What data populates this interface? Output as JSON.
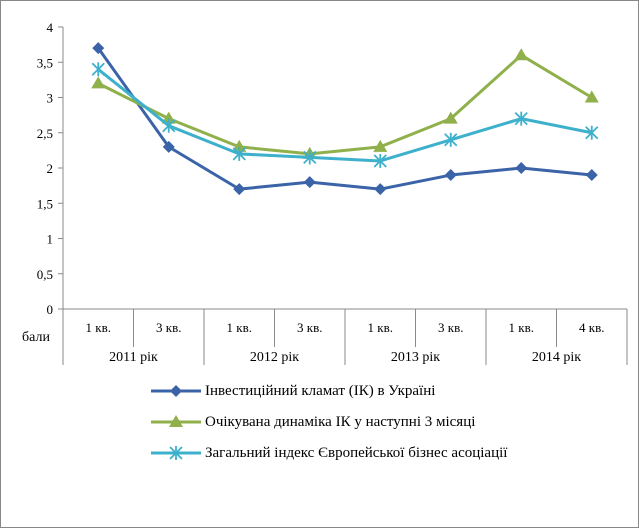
{
  "chart_data": {
    "type": "line",
    "ylabel_unit": "бали",
    "ylim": [
      0,
      4
    ],
    "yticks": [
      "0",
      "0,5",
      "1",
      "1,5",
      "2",
      "2,5",
      "3",
      "3,5",
      "4"
    ],
    "categories": [
      "1 кв.",
      "3 кв.",
      "1 кв.",
      "3 кв.",
      "1 кв.",
      "3 кв.",
      "1 кв.",
      "4 кв."
    ],
    "groups": [
      "2011 рік",
      "2012 рік",
      "2013 рік",
      "2014 рік"
    ],
    "series": [
      {
        "name": "Інвестиційний кламат (ІК) в Україні",
        "color": "#3a63a8",
        "marker": "diamond",
        "values": [
          3.7,
          2.3,
          1.7,
          1.8,
          1.7,
          1.9,
          2.0,
          1.9
        ]
      },
      {
        "name": "Очікувана динаміка ІК у наступні 3 місяці",
        "color": "#8fb04a",
        "marker": "triangle",
        "values": [
          3.2,
          2.7,
          2.3,
          2.2,
          2.3,
          2.7,
          3.6,
          3.0
        ]
      },
      {
        "name": "Загальний індекс Європейської бізнес асоціації",
        "color": "#3db0cc",
        "marker": "asterisk",
        "values": [
          3.4,
          2.6,
          2.2,
          2.15,
          2.1,
          2.4,
          2.7,
          2.5
        ]
      }
    ],
    "grid": false,
    "legend_position": "bottom"
  },
  "legend": {
    "items": [
      "Інвестиційний кламат (ІК) в Україні",
      "Очікувана динаміка ІК у наступні 3 місяці",
      "Загальний індекс Європейської бізнес асоціації"
    ]
  }
}
